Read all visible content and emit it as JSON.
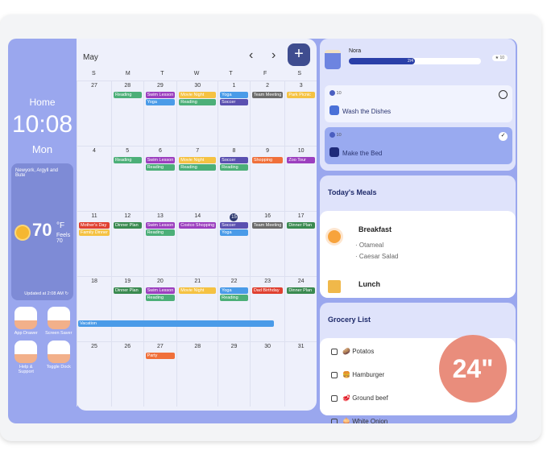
{
  "home": {
    "title": "Home",
    "time": "10:08",
    "day": "Mon"
  },
  "weather": {
    "location": "Newyork, Argyll and Bute",
    "temp": "70",
    "unit": "°F",
    "feels": "Feels 70",
    "updated": "Updated at 2:08 AM",
    "icon": "sun-icon"
  },
  "shortcuts": [
    {
      "label": "App Drawer",
      "icon": "apps-icon"
    },
    {
      "label": "Screen Saver",
      "icon": "hourglass-icon"
    },
    {
      "label": "Help & Support",
      "icon": "headset-icon"
    },
    {
      "label": "Toggle Dock",
      "icon": "tablet-icon"
    }
  ],
  "calendar": {
    "month": "May",
    "prev": "‹",
    "next": "›",
    "add": "+",
    "weekdays": [
      "S",
      "M",
      "T",
      "W",
      "T",
      "F",
      "S"
    ],
    "today": "15",
    "colors": {
      "green": "#4caf78",
      "dgreen": "#3a8a50",
      "purple": "#9c3fbf",
      "blue": "#4a9be8",
      "yellow": "#f5c242",
      "indigo": "#5a50b0",
      "gray": "#6b6b6b",
      "orange": "#f0703a",
      "red": "#e04030"
    },
    "days": [
      {
        "n": "27",
        "ev": []
      },
      {
        "n": "28",
        "ev": [
          [
            "Reading",
            "green"
          ]
        ]
      },
      {
        "n": "29",
        "ev": [
          [
            "Swim Lesson",
            "purple"
          ],
          [
            "Yoga",
            "blue"
          ]
        ]
      },
      {
        "n": "30",
        "ev": [
          [
            "Movie Night",
            "yellow"
          ],
          [
            "Reading",
            "green"
          ]
        ]
      },
      {
        "n": "1",
        "ev": [
          [
            "Yoga",
            "blue"
          ],
          [
            "Soccer",
            "indigo"
          ]
        ]
      },
      {
        "n": "2",
        "ev": [
          [
            "Team Meeting",
            "gray"
          ]
        ]
      },
      {
        "n": "3",
        "ev": [
          [
            "Park Picnic",
            "yellow"
          ]
        ]
      },
      {
        "n": "4",
        "ev": []
      },
      {
        "n": "5",
        "ev": [
          [
            "Reading",
            "green"
          ]
        ]
      },
      {
        "n": "6",
        "ev": [
          [
            "Swim Lesson",
            "purple"
          ],
          [
            "Reading",
            "green"
          ]
        ]
      },
      {
        "n": "7",
        "ev": [
          [
            "Movie Night",
            "yellow"
          ],
          [
            "Reading",
            "green"
          ]
        ]
      },
      {
        "n": "8",
        "ev": [
          [
            "Soccer",
            "indigo"
          ],
          [
            "Reading",
            "green"
          ]
        ]
      },
      {
        "n": "9",
        "ev": [
          [
            "Shopping",
            "orange"
          ]
        ]
      },
      {
        "n": "10",
        "ev": [
          [
            "Zoo Tour",
            "purple"
          ]
        ]
      },
      {
        "n": "11",
        "ev": [
          [
            "Mother's Day",
            "red"
          ],
          [
            "Family Dinner",
            "yellow"
          ]
        ]
      },
      {
        "n": "12",
        "ev": [
          [
            "Dinner Plan",
            "dgreen"
          ]
        ]
      },
      {
        "n": "13",
        "ev": [
          [
            "Swim Lesson",
            "purple"
          ],
          [
            "Reading",
            "green"
          ]
        ]
      },
      {
        "n": "14",
        "ev": [
          [
            "Costco Shopping",
            "purple"
          ]
        ]
      },
      {
        "n": "15",
        "ev": [
          [
            "Soccer",
            "indigo"
          ],
          [
            "Yoga",
            "blue"
          ]
        ]
      },
      {
        "n": "16",
        "ev": [
          [
            "Team Meeting",
            "gray"
          ]
        ]
      },
      {
        "n": "17",
        "ev": [
          [
            "Dinner Plan",
            "dgreen"
          ]
        ]
      },
      {
        "n": "18",
        "ev": []
      },
      {
        "n": "19",
        "ev": [
          [
            "Dinner Plan",
            "dgreen"
          ]
        ]
      },
      {
        "n": "20",
        "ev": [
          [
            "Swim Lesson",
            "purple"
          ],
          [
            "Reading",
            "green"
          ]
        ]
      },
      {
        "n": "21",
        "ev": [
          [
            "Movie Night",
            "yellow"
          ]
        ]
      },
      {
        "n": "22",
        "ev": [
          [
            "Yoga",
            "blue"
          ],
          [
            "Reading",
            "green"
          ]
        ]
      },
      {
        "n": "23",
        "ev": [
          [
            "Dad Birthday",
            "red"
          ]
        ]
      },
      {
        "n": "24",
        "ev": [
          [
            "Dinner Plan",
            "dgreen"
          ]
        ]
      },
      {
        "n": "25",
        "ev": []
      },
      {
        "n": "26",
        "ev": []
      },
      {
        "n": "27",
        "ev": [
          [
            "Party",
            "orange"
          ]
        ]
      },
      {
        "n": "28",
        "ev": []
      },
      {
        "n": "29",
        "ev": []
      },
      {
        "n": "30",
        "ev": []
      },
      {
        "n": "31",
        "ev": []
      }
    ],
    "span_event": {
      "label": "Vacation",
      "from": "25",
      "to": "30",
      "color": "#4a9be8"
    }
  },
  "chores": {
    "name": "Nora",
    "progress": "2/4",
    "progress_fraction": 0.5,
    "points": "10",
    "tasks": [
      {
        "points": "10",
        "label": "Wash the Dishes",
        "done": false
      },
      {
        "points": "10",
        "label": "Make the Bed",
        "done": true
      }
    ]
  },
  "meals": {
    "title": "Today's Meals",
    "items": [
      {
        "label": "Breakfast",
        "dishes": [
          "Otameal",
          "Caesar Salad"
        ]
      },
      {
        "label": "Lunch"
      }
    ]
  },
  "grocery": {
    "title": "Grocery List",
    "items": [
      {
        "emoji": "🥔",
        "label": "Potatos"
      },
      {
        "emoji": "🍔",
        "label": "Hamburger"
      },
      {
        "emoji": "🥩",
        "label": "Ground beef"
      },
      {
        "emoji": "🧅",
        "label": "White Onion"
      }
    ]
  },
  "badge": "24\""
}
